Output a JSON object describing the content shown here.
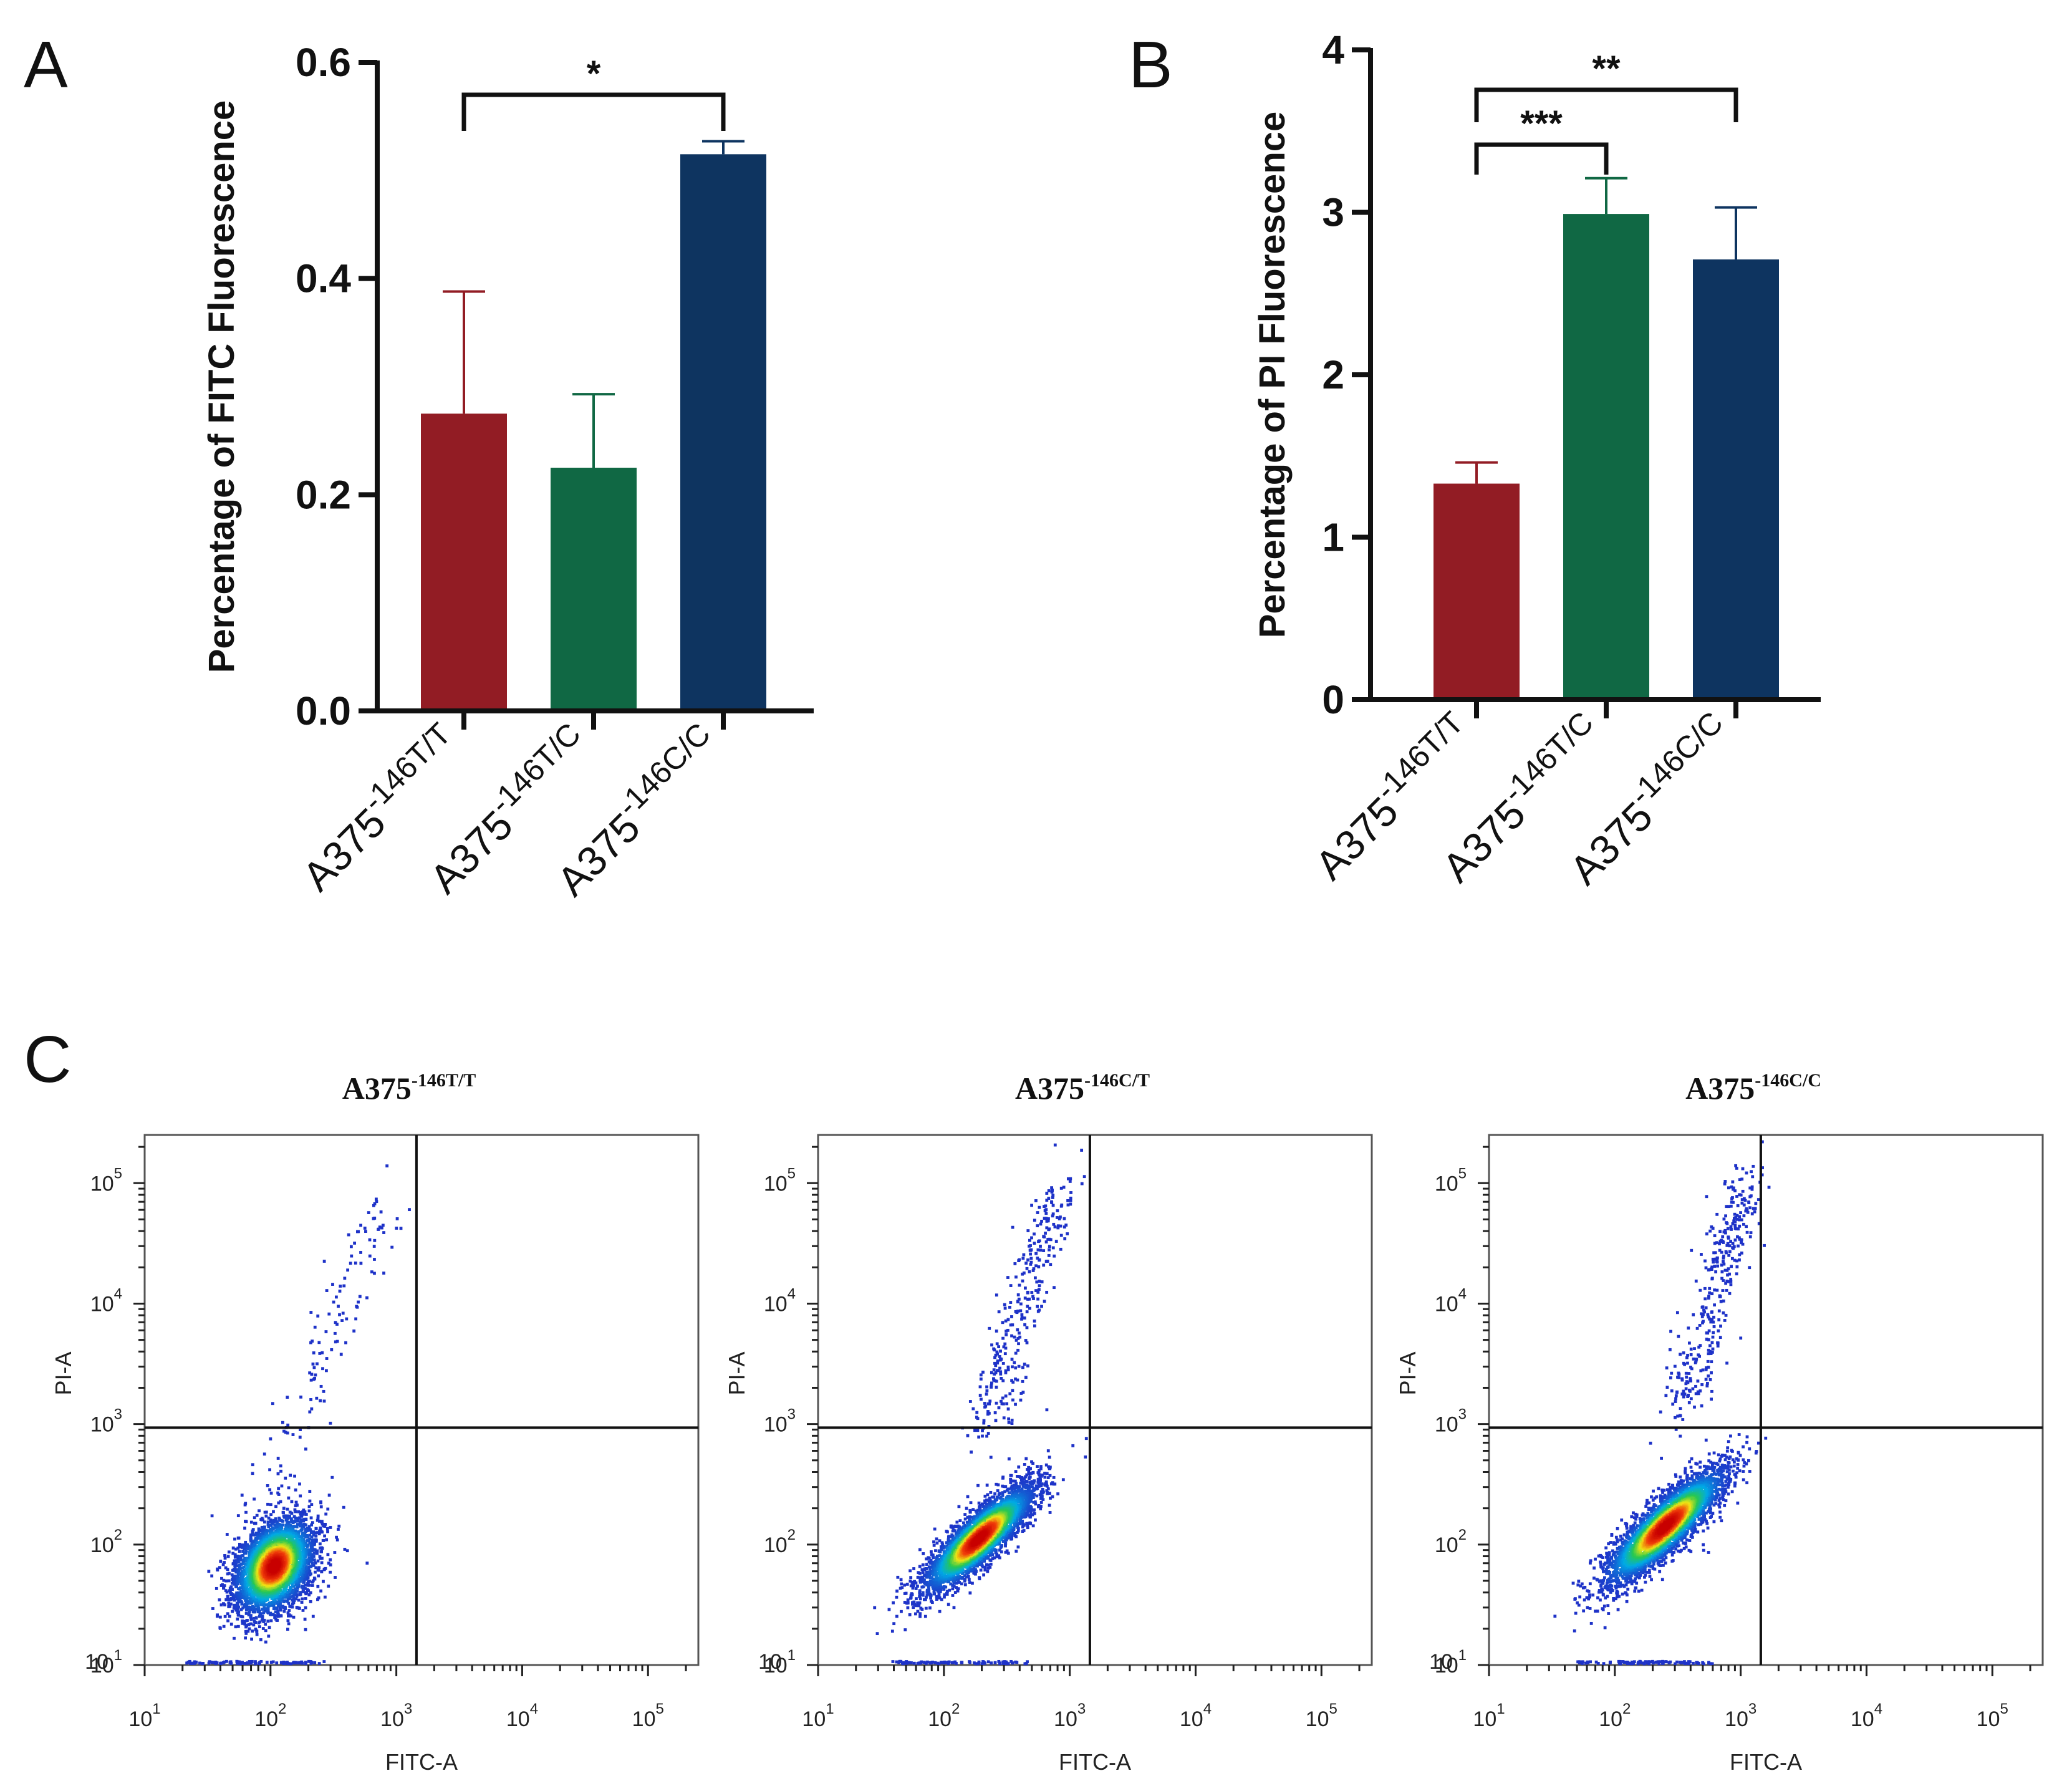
{
  "panels": {
    "a": {
      "letter": "A"
    },
    "b": {
      "letter": "B"
    },
    "c": {
      "letter": "C"
    }
  },
  "colors": {
    "red": "#921c24",
    "green": "#106844",
    "navy": "#0e3460",
    "axis": "#111111"
  },
  "chart_data": [
    {
      "id": "A",
      "type": "bar",
      "title": "",
      "xlabel": "",
      "ylabel": "Percentage of FITC Fluorescence",
      "ylim": [
        0,
        0.6
      ],
      "yticks": [
        0.0,
        0.2,
        0.4,
        0.6
      ],
      "ytick_labels": [
        "0.0",
        "0.2",
        "0.4",
        "0.6"
      ],
      "categories": [
        {
          "base": "A375",
          "sup": "-146T/T"
        },
        {
          "base": "A375",
          "sup": "-146T/C"
        },
        {
          "base": "A375",
          "sup": "-146C/C"
        }
      ],
      "values": [
        0.275,
        0.225,
        0.515
      ],
      "errors": [
        0.113,
        0.068,
        0.012
      ],
      "bar_colors": [
        "#921c24",
        "#106844",
        "#0e3460"
      ],
      "significance": [
        {
          "from": 0,
          "to": 2,
          "label": "*"
        }
      ]
    },
    {
      "id": "B",
      "type": "bar",
      "title": "",
      "xlabel": "",
      "ylabel": "Percentage of PI Fluorescence",
      "ylim": [
        0,
        4
      ],
      "yticks": [
        0,
        1,
        2,
        3,
        4
      ],
      "ytick_labels": [
        "0",
        "1",
        "2",
        "3",
        "4"
      ],
      "categories": [
        {
          "base": "A375",
          "sup": "-146T/T"
        },
        {
          "base": "A375",
          "sup": "-146T/C"
        },
        {
          "base": "A375",
          "sup": "-146C/C"
        }
      ],
      "values": [
        1.33,
        2.99,
        2.71
      ],
      "errors": [
        0.13,
        0.22,
        0.32
      ],
      "bar_colors": [
        "#921c24",
        "#106844",
        "#0e3460"
      ],
      "significance": [
        {
          "from": 0,
          "to": 1,
          "label": "***"
        },
        {
          "from": 0,
          "to": 2,
          "label": "**"
        }
      ]
    },
    {
      "id": "C1",
      "type": "scatter",
      "title_base": "A375",
      "title_sup": "-146T/T",
      "xlabel": "FITC-A",
      "ylabel": "PI-A",
      "scale": "log10",
      "xlim": [
        1,
        5.4
      ],
      "ylim": [
        1,
        5.4
      ],
      "x_tick_exponents": [
        1,
        2,
        3,
        4,
        5
      ],
      "y_tick_exponents": [
        1,
        2,
        3,
        4,
        5
      ],
      "gate_x": 3.16,
      "gate_y": 2.97,
      "population": {
        "cx": 2.03,
        "cy": 1.82,
        "sx": 0.16,
        "sy": 0.2,
        "rho": 0.35,
        "n": 3600
      },
      "tail": {
        "x0": 1.9,
        "y0": 2.2,
        "x1": 2.95,
        "y1": 4.95,
        "n": 140
      }
    },
    {
      "id": "C2",
      "type": "scatter",
      "title_base": "A375",
      "title_sup": "-146C/T",
      "xlabel": "FITC-A",
      "ylabel": "PI-A",
      "scale": "log10",
      "xlim": [
        1,
        5.4
      ],
      "ylim": [
        1,
        5.4
      ],
      "x_tick_exponents": [
        1,
        2,
        3,
        4,
        5
      ],
      "y_tick_exponents": [
        1,
        2,
        3,
        4,
        5
      ],
      "gate_x": 3.16,
      "gate_y": 2.97,
      "population": {
        "cx": 2.28,
        "cy": 2.05,
        "sx": 0.22,
        "sy": 0.22,
        "rho": 0.85,
        "n": 3600
      },
      "tail": {
        "x0": 2.3,
        "y0": 2.9,
        "x1": 2.95,
        "y1": 5.05,
        "n": 330
      }
    },
    {
      "id": "C3",
      "type": "scatter",
      "title_base": "A375",
      "title_sup": "-146C/C",
      "xlabel": "FITC-A",
      "ylabel": "PI-A",
      "scale": "log10",
      "xlim": [
        1,
        5.4
      ],
      "ylim": [
        1,
        5.4
      ],
      "x_tick_exponents": [
        1,
        2,
        3,
        4,
        5
      ],
      "y_tick_exponents": [
        1,
        2,
        3,
        4,
        5
      ],
      "gate_x": 3.16,
      "gate_y": 2.97,
      "population": {
        "cx": 2.4,
        "cy": 2.15,
        "sx": 0.24,
        "sy": 0.24,
        "rho": 0.86,
        "n": 3600
      },
      "tail": {
        "x0": 2.5,
        "y0": 3.0,
        "x1": 3.05,
        "y1": 5.05,
        "n": 360
      }
    }
  ]
}
